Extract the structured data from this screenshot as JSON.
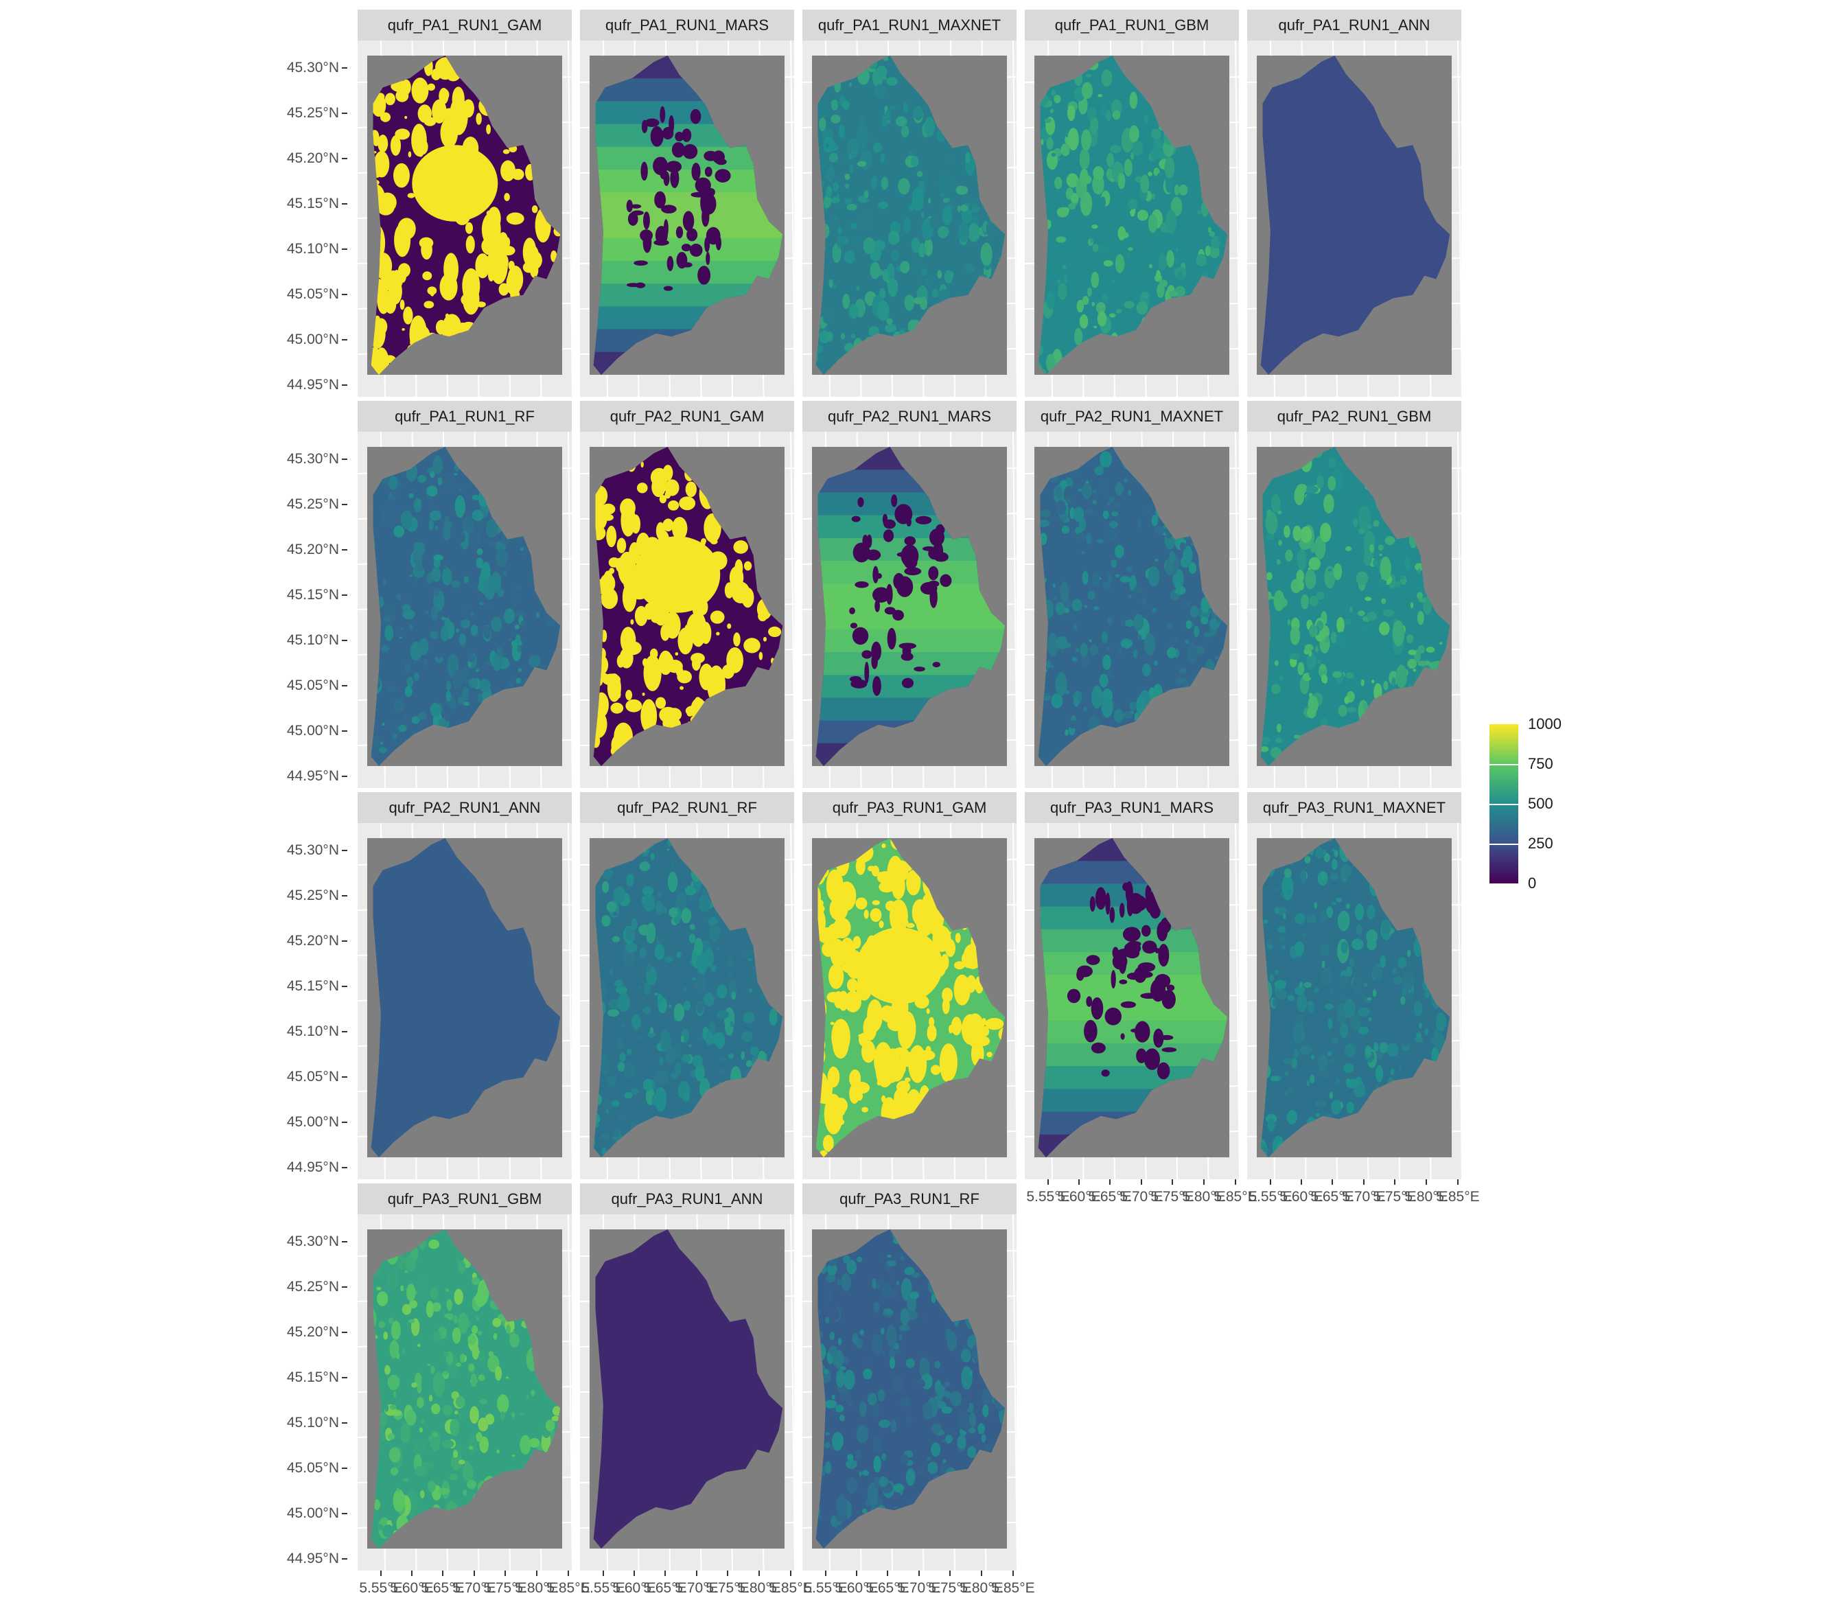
{
  "chart_data": {
    "type": "heatmap",
    "description_of_value_scale": "",
    "facets": [
      {
        "title": "qufr_PA1_RUN1_GAM",
        "pattern": "binary",
        "base_value": 20,
        "alt_value": 990
      },
      {
        "title": "qufr_PA1_RUN1_MARS",
        "pattern": "gradient",
        "base_value": 60,
        "alt_value": 800
      },
      {
        "title": "qufr_PA1_RUN1_MAXNET",
        "pattern": "smooth",
        "base_value": 420,
        "alt_value": 600
      },
      {
        "title": "qufr_PA1_RUN1_GBM",
        "pattern": "smooth",
        "base_value": 480,
        "alt_value": 700
      },
      {
        "title": "qufr_PA1_RUN1_ANN",
        "pattern": "flat",
        "base_value": 230,
        "alt_value": 230
      },
      {
        "title": "qufr_PA1_RUN1_RF",
        "pattern": "smooth",
        "base_value": 330,
        "alt_value": 520
      },
      {
        "title": "qufr_PA2_RUN1_GAM",
        "pattern": "binary",
        "base_value": 20,
        "alt_value": 990
      },
      {
        "title": "qufr_PA2_RUN1_MARS",
        "pattern": "gradient",
        "base_value": 60,
        "alt_value": 760
      },
      {
        "title": "qufr_PA2_RUN1_MAXNET",
        "pattern": "smooth",
        "base_value": 330,
        "alt_value": 520
      },
      {
        "title": "qufr_PA2_RUN1_GBM",
        "pattern": "smooth",
        "base_value": 480,
        "alt_value": 720
      },
      {
        "title": "qufr_PA2_RUN1_ANN",
        "pattern": "flat",
        "base_value": 300,
        "alt_value": 300
      },
      {
        "title": "qufr_PA2_RUN1_RF",
        "pattern": "smooth",
        "base_value": 380,
        "alt_value": 560
      },
      {
        "title": "qufr_PA3_RUN1_GAM",
        "pattern": "binary",
        "base_value": 720,
        "alt_value": 990
      },
      {
        "title": "qufr_PA3_RUN1_MARS",
        "pattern": "gradient",
        "base_value": 60,
        "alt_value": 760
      },
      {
        "title": "qufr_PA3_RUN1_MAXNET",
        "pattern": "smooth",
        "base_value": 380,
        "alt_value": 560
      },
      {
        "title": "qufr_PA3_RUN1_GBM",
        "pattern": "smooth",
        "base_value": 580,
        "alt_value": 800
      },
      {
        "title": "qufr_PA3_RUN1_ANN",
        "pattern": "flat",
        "base_value": 120,
        "alt_value": 120
      },
      {
        "title": "qufr_PA3_RUN1_RF",
        "pattern": "smooth",
        "base_value": 300,
        "alt_value": 500
      }
    ],
    "y_ticks": [
      "45.30°N",
      "45.25°N",
      "45.20°N",
      "45.15°N",
      "45.10°N",
      "45.05°N",
      "45.00°N",
      "44.95°N"
    ],
    "x_ticks": [
      "5.55°E",
      "5.60°E",
      "5.65°E",
      "5.70°E",
      "5.75°E",
      "5.80°E",
      "5.85°E"
    ],
    "ylim": [
      44.95,
      45.3
    ],
    "xlim": [
      5.55,
      5.85
    ],
    "legend": {
      "position": "right",
      "range": [
        0,
        1000
      ],
      "labels": [
        "1000",
        "750",
        "500",
        "250",
        "0"
      ],
      "colormap": "viridis",
      "colors": [
        "#440154",
        "#3b528b",
        "#21908d",
        "#5dc863",
        "#fde725"
      ]
    },
    "panel_background": "#7f7f7f",
    "grid": true
  }
}
